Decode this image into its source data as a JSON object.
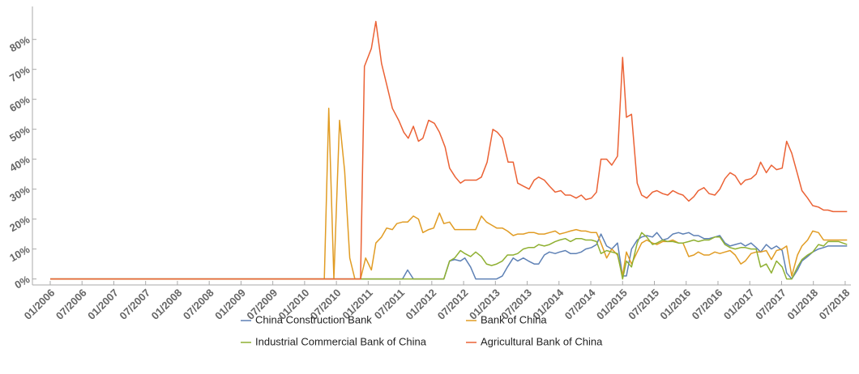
{
  "chart_data": {
    "type": "line",
    "xlim": [
      2005.72,
      2018.59
    ],
    "ylim": [
      -2,
      91
    ],
    "xticks": [
      {
        "value": 2006,
        "label": "01/2006"
      },
      {
        "value": 2006.5,
        "label": "07/2006"
      },
      {
        "value": 2007,
        "label": "01/2007"
      },
      {
        "value": 2007.5,
        "label": "07/2007"
      },
      {
        "value": 2008,
        "label": "01/2008"
      },
      {
        "value": 2008.5,
        "label": "07/2008"
      },
      {
        "value": 2009,
        "label": "01/2009"
      },
      {
        "value": 2009.5,
        "label": "07/2009"
      },
      {
        "value": 2010,
        "label": "01/2010"
      },
      {
        "value": 2010.5,
        "label": "07/2010"
      },
      {
        "value": 2011,
        "label": "01/2011"
      },
      {
        "value": 2011.5,
        "label": "07/2011"
      },
      {
        "value": 2012,
        "label": "01/2012"
      },
      {
        "value": 2012.5,
        "label": "07/2012"
      },
      {
        "value": 2013,
        "label": "01/2013"
      },
      {
        "value": 2013.5,
        "label": "07/2013"
      },
      {
        "value": 2014,
        "label": "01/2014"
      },
      {
        "value": 2014.5,
        "label": "07/2014"
      },
      {
        "value": 2015,
        "label": "01/2015"
      },
      {
        "value": 2015.5,
        "label": "07/2015"
      },
      {
        "value": 2016,
        "label": "01/2016"
      },
      {
        "value": 2016.5,
        "label": "07/2016"
      },
      {
        "value": 2017,
        "label": "01/2017"
      },
      {
        "value": 2017.5,
        "label": "07/2017"
      },
      {
        "value": 2018,
        "label": "01/2018"
      },
      {
        "value": 2018.5,
        "label": "07/2018"
      }
    ],
    "yticks": [
      {
        "value": 0,
        "label": "0%"
      },
      {
        "value": 10,
        "label": "10%"
      },
      {
        "value": 20,
        "label": "20%"
      },
      {
        "value": 30,
        "label": "30%"
      },
      {
        "value": 40,
        "label": "40%"
      },
      {
        "value": 50,
        "label": "50%"
      },
      {
        "value": 60,
        "label": "60%"
      },
      {
        "value": 70,
        "label": "70%"
      },
      {
        "value": 80,
        "label": "80%"
      }
    ],
    "series": [
      {
        "name": "China Construction Bank",
        "color": "#5e81b5",
        "x": [
          2006,
          2011.54,
          2011.62,
          2011.71,
          2012.19,
          2012.28,
          2012.36,
          2012.45,
          2012.52,
          2012.61,
          2012.69,
          2012.78,
          2012.86,
          2012.94,
          2013.02,
          2013.11,
          2013.19,
          2013.28,
          2013.35,
          2013.44,
          2013.52,
          2013.61,
          2013.68,
          2013.77,
          2013.85,
          2013.94,
          2014.01,
          2014.1,
          2014.18,
          2014.27,
          2014.35,
          2014.42,
          2014.51,
          2014.59,
          2014.66,
          2014.75,
          2014.83,
          2014.92,
          2015.0,
          2015.06,
          2015.14,
          2015.23,
          2015.3,
          2015.38,
          2015.47,
          2015.54,
          2015.63,
          2015.71,
          2015.79,
          2015.88,
          2015.95,
          2016.04,
          2016.12,
          2016.19,
          2016.28,
          2016.36,
          2016.45,
          2016.53,
          2016.61,
          2016.69,
          2016.77,
          2016.86,
          2016.93,
          2017.02,
          2017.1,
          2017.17,
          2017.26,
          2017.34,
          2017.42,
          2017.51,
          2017.58,
          2017.66,
          2017.75,
          2017.82,
          2017.91,
          2017.99,
          2018.08,
          2018.16,
          2018.23,
          2018.4,
          2018.53
        ],
        "values": [
          0,
          0,
          3,
          0,
          0,
          6,
          6.5,
          6,
          7,
          4,
          0,
          0,
          0,
          0,
          0,
          1,
          4,
          7,
          6,
          7,
          6,
          5,
          5,
          8,
          9,
          8.5,
          9,
          9.5,
          8.5,
          8.5,
          9,
          10,
          10.5,
          11.5,
          15,
          11,
          10,
          12,
          1,
          1,
          10,
          13,
          14,
          14.5,
          14,
          15.5,
          13,
          13.5,
          15,
          15.5,
          15,
          15.5,
          14.5,
          14.5,
          13.5,
          13.5,
          14,
          14.5,
          12,
          11,
          11.5,
          12,
          11,
          12,
          10.5,
          9,
          11.5,
          10,
          11,
          9.5,
          2,
          0,
          3,
          6,
          7.5,
          9,
          10,
          10.5,
          11,
          11,
          11
        ]
      },
      {
        "name": "Bank of China",
        "color": "#e19c24",
        "x": [
          2006,
          2010.31,
          2010.38,
          2010.46,
          2010.55,
          2010.63,
          2010.71,
          2010.79,
          2010.88,
          2010.96,
          2011.05,
          2011.12,
          2011.21,
          2011.29,
          2011.38,
          2011.45,
          2011.54,
          2011.62,
          2011.71,
          2011.79,
          2011.86,
          2011.95,
          2012.03,
          2012.12,
          2012.19,
          2012.28,
          2012.36,
          2012.45,
          2012.52,
          2012.61,
          2012.69,
          2012.78,
          2012.86,
          2012.94,
          2013.02,
          2013.11,
          2013.19,
          2013.28,
          2013.35,
          2013.44,
          2013.52,
          2013.61,
          2013.68,
          2013.77,
          2013.85,
          2013.94,
          2014.01,
          2014.1,
          2014.18,
          2014.27,
          2014.35,
          2014.42,
          2014.51,
          2014.59,
          2014.66,
          2014.75,
          2014.83,
          2014.92,
          2015.0,
          2015.06,
          2015.14,
          2015.23,
          2015.3,
          2015.38,
          2015.47,
          2015.54,
          2015.63,
          2015.71,
          2015.79,
          2015.88,
          2015.95,
          2016.04,
          2016.12,
          2016.19,
          2016.28,
          2016.36,
          2016.45,
          2016.53,
          2016.61,
          2016.69,
          2016.77,
          2016.86,
          2016.93,
          2017.02,
          2017.1,
          2017.17,
          2017.26,
          2017.34,
          2017.42,
          2017.51,
          2017.58,
          2017.66,
          2017.75,
          2017.82,
          2017.91,
          2017.99,
          2018.08,
          2018.16,
          2018.23,
          2018.4,
          2018.53
        ],
        "values": [
          0,
          0,
          57,
          0,
          53,
          36,
          7,
          0,
          0,
          7,
          3,
          12,
          14,
          17,
          16.5,
          18.5,
          19,
          19,
          21,
          20,
          15.5,
          16.5,
          17,
          22,
          18.5,
          19,
          16.5,
          16.5,
          16.5,
          16.5,
          16.5,
          21,
          19,
          18,
          17,
          17,
          16,
          14.5,
          15,
          15,
          15.5,
          15.5,
          15,
          15,
          15.5,
          16,
          15,
          15.5,
          16,
          16.5,
          16,
          16,
          15.5,
          15.5,
          12,
          7,
          10,
          8,
          1,
          9,
          5,
          9,
          12,
          13,
          12,
          11.5,
          12.5,
          12.5,
          13,
          12,
          12,
          7.5,
          8,
          9,
          8,
          8,
          9,
          8.5,
          9,
          9.5,
          8,
          5,
          6,
          8.5,
          9,
          9,
          9.5,
          6.5,
          9.5,
          10,
          11,
          1,
          8,
          11,
          13,
          16,
          15.5,
          13,
          13,
          13,
          13
        ]
      },
      {
        "name": "Industrial Commercial Bank of China",
        "color": "#8fb032",
        "x": [
          2006,
          2012.19,
          2012.28,
          2012.36,
          2012.45,
          2012.52,
          2012.61,
          2012.69,
          2012.78,
          2012.86,
          2012.94,
          2013.02,
          2013.11,
          2013.19,
          2013.28,
          2013.35,
          2013.44,
          2013.52,
          2013.61,
          2013.68,
          2013.77,
          2013.85,
          2013.94,
          2014.01,
          2014.1,
          2014.18,
          2014.27,
          2014.35,
          2014.42,
          2014.51,
          2014.59,
          2014.66,
          2014.75,
          2014.83,
          2014.92,
          2015.0,
          2015.06,
          2015.14,
          2015.23,
          2015.3,
          2015.38,
          2015.47,
          2015.54,
          2015.63,
          2015.71,
          2015.79,
          2015.88,
          2015.95,
          2016.04,
          2016.12,
          2016.19,
          2016.28,
          2016.36,
          2016.45,
          2016.53,
          2016.61,
          2016.69,
          2016.77,
          2016.86,
          2016.93,
          2017.02,
          2017.1,
          2017.17,
          2017.26,
          2017.34,
          2017.42,
          2017.51,
          2017.58,
          2017.66,
          2017.75,
          2017.82,
          2017.91,
          2017.99,
          2018.08,
          2018.16,
          2018.23,
          2018.4,
          2018.53
        ],
        "values": [
          0,
          0,
          6,
          7,
          9.5,
          8.5,
          7.5,
          9,
          7.5,
          5,
          4.5,
          5,
          6,
          8,
          8,
          8.5,
          10,
          10.5,
          10.5,
          11.5,
          11,
          11.5,
          12.5,
          13,
          13.5,
          12.5,
          13.5,
          13.5,
          13,
          13,
          12.5,
          8.5,
          9.5,
          9,
          8.5,
          0,
          6,
          4,
          12,
          15.5,
          14,
          11.5,
          12,
          13,
          12.5,
          12.5,
          12,
          12,
          12.5,
          13,
          12.5,
          13,
          13,
          14,
          14,
          11.5,
          10.5,
          10,
          10.5,
          10.5,
          10,
          10,
          4,
          5,
          2,
          6,
          4,
          0,
          0,
          4,
          6.5,
          8,
          9,
          11.5,
          11,
          12.5,
          12.5,
          11.5
        ]
      },
      {
        "name": "Agricultural Bank of China",
        "color": "#eb6235",
        "x": [
          2006,
          2010.88,
          2010.94,
          2011.05,
          2011.12,
          2011.21,
          2011.29,
          2011.38,
          2011.48,
          2011.56,
          2011.63,
          2011.71,
          2011.79,
          2011.86,
          2011.95,
          2012.04,
          2012.12,
          2012.21,
          2012.28,
          2012.37,
          2012.45,
          2012.52,
          2012.61,
          2012.7,
          2012.78,
          2012.87,
          2012.96,
          2013.03,
          2013.11,
          2013.2,
          2013.28,
          2013.35,
          2013.44,
          2013.53,
          2013.61,
          2013.68,
          2013.77,
          2013.85,
          2013.94,
          2014.03,
          2014.1,
          2014.18,
          2014.27,
          2014.35,
          2014.42,
          2014.51,
          2014.59,
          2014.66,
          2014.75,
          2014.83,
          2014.92,
          2015.0,
          2015.06,
          2015.14,
          2015.23,
          2015.3,
          2015.38,
          2015.47,
          2015.54,
          2015.63,
          2015.71,
          2015.79,
          2015.88,
          2015.95,
          2016.04,
          2016.12,
          2016.19,
          2016.28,
          2016.36,
          2016.45,
          2016.53,
          2016.61,
          2016.69,
          2016.77,
          2016.86,
          2016.93,
          2017.02,
          2017.1,
          2017.17,
          2017.26,
          2017.34,
          2017.42,
          2017.51,
          2017.58,
          2017.66,
          2017.75,
          2017.82,
          2017.91,
          2017.99,
          2018.08,
          2018.16,
          2018.23,
          2018.31,
          2018.4,
          2018.53
        ],
        "values": [
          0,
          0,
          71,
          77,
          86,
          72,
          65,
          57,
          53,
          49,
          47,
          51,
          46,
          47,
          53,
          52,
          49,
          44,
          37,
          34,
          32,
          33,
          33,
          33,
          34,
          39,
          50,
          49,
          47,
          39,
          39,
          32,
          31,
          30,
          33,
          34,
          33,
          31,
          29,
          29.5,
          28,
          28,
          27,
          28,
          26.5,
          27,
          29,
          40,
          40,
          38,
          41,
          74,
          54,
          55,
          32,
          28,
          27,
          29,
          29.5,
          28.5,
          28,
          29.5,
          28.5,
          28,
          26,
          27.5,
          29.5,
          30.5,
          28.5,
          28,
          30,
          33.5,
          35.5,
          34.5,
          31.5,
          33,
          33.5,
          35,
          39,
          35.5,
          38,
          36.5,
          37,
          46,
          42,
          35,
          29.5,
          27,
          24.5,
          24,
          23,
          23,
          22.5,
          22.5,
          22.5
        ]
      }
    ]
  }
}
